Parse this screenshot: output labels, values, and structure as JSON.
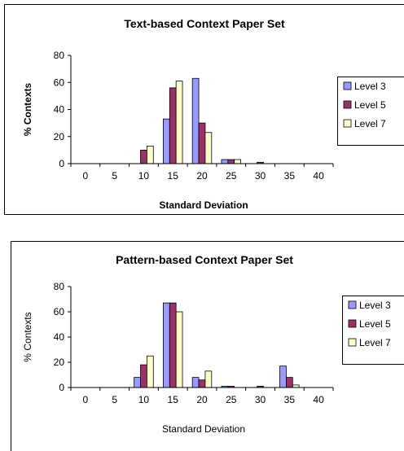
{
  "chart_data": [
    {
      "type": "bar",
      "title": "Text-based Context Paper Set",
      "xlabel": "Standard Deviation",
      "ylabel": "% Contexts",
      "axis_title_bold": true,
      "categories": [
        "0",
        "5",
        "10",
        "15",
        "20",
        "25",
        "30",
        "35",
        "40"
      ],
      "ylim": [
        0,
        80
      ],
      "yticks": [
        0,
        20,
        40,
        60,
        80
      ],
      "grid": false,
      "legend_position": "right",
      "series": [
        {
          "name": "Level 3",
          "color": "#9999ff",
          "values": [
            0,
            0,
            0,
            33,
            63,
            3,
            0,
            0,
            0
          ]
        },
        {
          "name": "Level 5",
          "color": "#993366",
          "values": [
            0,
            0,
            10,
            56,
            30,
            3,
            1,
            0,
            0
          ]
        },
        {
          "name": "Level 7",
          "color": "#ffffcc",
          "values": [
            0,
            0,
            13,
            61,
            23,
            3,
            0,
            0,
            0
          ]
        }
      ]
    },
    {
      "type": "bar",
      "title": "Pattern-based Context Paper Set",
      "xlabel": "Standard Deviation",
      "ylabel": "% Contexts",
      "axis_title_bold": false,
      "categories": [
        "0",
        "5",
        "10",
        "15",
        "20",
        "25",
        "30",
        "35",
        "40"
      ],
      "ylim": [
        0,
        80
      ],
      "yticks": [
        0,
        20,
        40,
        60,
        80
      ],
      "grid": false,
      "legend_position": "right",
      "series": [
        {
          "name": "Level 3",
          "color": "#9999ff",
          "values": [
            0,
            0,
            8,
            67,
            8,
            1,
            0,
            17,
            0
          ]
        },
        {
          "name": "Level 5",
          "color": "#993366",
          "values": [
            0,
            0,
            18,
            67,
            6,
            1,
            1,
            8,
            0
          ]
        },
        {
          "name": "Level 7",
          "color": "#ffffcc",
          "values": [
            0,
            0,
            25,
            60,
            13,
            0,
            0,
            2,
            0
          ]
        }
      ]
    }
  ]
}
